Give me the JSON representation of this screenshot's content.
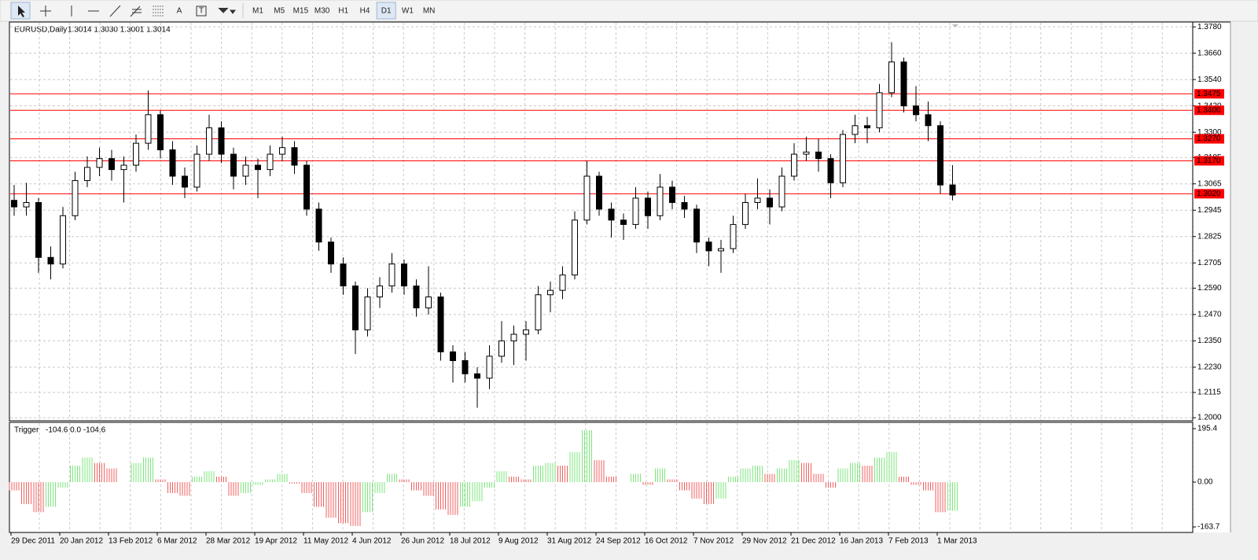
{
  "toolbar": {
    "tools": [
      "A",
      "T"
    ],
    "timeframes": [
      "M1",
      "M5",
      "M15",
      "M30",
      "H1",
      "H4",
      "D1",
      "W1",
      "MN"
    ],
    "active": "D1"
  },
  "chart_data": [
    {
      "type": "candlestick",
      "title": "EURUSD,Daily",
      "quote": "1.3014 1.3030 1.3001 1.3014",
      "bull_color": "#ffffff",
      "bear_color": "#000000",
      "categories": [
        "29 Dec 2011",
        null,
        null,
        null,
        "20 Jan 2012",
        null,
        null,
        null,
        "13 Feb 2012",
        null,
        null,
        null,
        "6 Mar 2012",
        null,
        null,
        null,
        "28 Mar 2012",
        null,
        null,
        null,
        "19 Apr 2012",
        null,
        null,
        null,
        "11 May 2012",
        null,
        null,
        null,
        "4 Jun 2012",
        null,
        null,
        null,
        "26 Jun 2012",
        null,
        null,
        null,
        "18 Jul 2012",
        null,
        null,
        null,
        "9 Aug 2012",
        null,
        null,
        null,
        "31 Aug 2012",
        null,
        null,
        null,
        "24 Sep 2012",
        null,
        null,
        null,
        "16 Oct 2012",
        null,
        null,
        null,
        "7 Nov 2012",
        null,
        null,
        null,
        "29 Nov 2012",
        null,
        null,
        null,
        "21 Dec 2012",
        null,
        null,
        null,
        "16 Jan 2013",
        null,
        null,
        null,
        "7 Feb 2013",
        null,
        null,
        null,
        "1 Mar 2013",
        null
      ],
      "candles": [
        [
          1.299,
          1.306,
          1.292,
          1.296
        ],
        [
          1.296,
          1.307,
          1.292,
          1.298
        ],
        [
          1.298,
          1.3,
          1.266,
          1.273
        ],
        [
          1.273,
          1.278,
          1.263,
          1.27
        ],
        [
          1.27,
          1.296,
          1.268,
          1.292
        ],
        [
          1.292,
          1.312,
          1.29,
          1.308
        ],
        [
          1.308,
          1.319,
          1.305,
          1.314
        ],
        [
          1.314,
          1.323,
          1.31,
          1.318
        ],
        [
          1.318,
          1.322,
          1.308,
          1.313
        ],
        [
          1.313,
          1.319,
          1.298,
          1.315
        ],
        [
          1.315,
          1.329,
          1.312,
          1.325
        ],
        [
          1.325,
          1.349,
          1.322,
          1.338
        ],
        [
          1.338,
          1.34,
          1.318,
          1.322
        ],
        [
          1.322,
          1.326,
          1.306,
          1.31
        ],
        [
          1.31,
          1.314,
          1.3,
          1.305
        ],
        [
          1.305,
          1.324,
          1.303,
          1.32
        ],
        [
          1.32,
          1.338,
          1.317,
          1.332
        ],
        [
          1.332,
          1.335,
          1.316,
          1.32
        ],
        [
          1.32,
          1.323,
          1.304,
          1.31
        ],
        [
          1.31,
          1.319,
          1.306,
          1.315
        ],
        [
          1.315,
          1.318,
          1.3,
          1.313
        ],
        [
          1.313,
          1.324,
          1.31,
          1.32
        ],
        [
          1.32,
          1.328,
          1.317,
          1.323
        ],
        [
          1.323,
          1.326,
          1.311,
          1.315
        ],
        [
          1.315,
          1.317,
          1.292,
          1.295
        ],
        [
          1.295,
          1.298,
          1.276,
          1.28
        ],
        [
          1.28,
          1.282,
          1.266,
          1.27
        ],
        [
          1.27,
          1.273,
          1.256,
          1.26
        ],
        [
          1.26,
          1.262,
          1.229,
          1.24
        ],
        [
          1.24,
          1.259,
          1.237,
          1.255
        ],
        [
          1.255,
          1.264,
          1.25,
          1.26
        ],
        [
          1.26,
          1.275,
          1.257,
          1.27
        ],
        [
          1.27,
          1.272,
          1.256,
          1.26
        ],
        [
          1.26,
          1.263,
          1.246,
          1.25
        ],
        [
          1.25,
          1.269,
          1.247,
          1.255
        ],
        [
          1.255,
          1.257,
          1.226,
          1.23
        ],
        [
          1.23,
          1.233,
          1.216,
          1.226
        ],
        [
          1.226,
          1.23,
          1.216,
          1.22
        ],
        [
          1.22,
          1.223,
          1.2045,
          1.218
        ],
        [
          1.218,
          1.233,
          1.213,
          1.228
        ],
        [
          1.228,
          1.244,
          1.225,
          1.235
        ],
        [
          1.235,
          1.242,
          1.224,
          1.238
        ],
        [
          1.238,
          1.244,
          1.226,
          1.24
        ],
        [
          1.24,
          1.26,
          1.238,
          1.256
        ],
        [
          1.256,
          1.262,
          1.248,
          1.258
        ],
        [
          1.258,
          1.269,
          1.254,
          1.265
        ],
        [
          1.265,
          1.294,
          1.263,
          1.29
        ],
        [
          1.29,
          1.317,
          1.288,
          1.31
        ],
        [
          1.31,
          1.312,
          1.292,
          1.295
        ],
        [
          1.295,
          1.298,
          1.282,
          1.29
        ],
        [
          1.29,
          1.293,
          1.281,
          1.288
        ],
        [
          1.288,
          1.305,
          1.286,
          1.3
        ],
        [
          1.3,
          1.303,
          1.286,
          1.292
        ],
        [
          1.292,
          1.311,
          1.29,
          1.305
        ],
        [
          1.305,
          1.308,
          1.295,
          1.298
        ],
        [
          1.298,
          1.301,
          1.291,
          1.295
        ],
        [
          1.295,
          1.297,
          1.275,
          1.28
        ],
        [
          1.28,
          1.282,
          1.269,
          1.276
        ],
        [
          1.276,
          1.281,
          1.266,
          1.277
        ],
        [
          1.277,
          1.292,
          1.275,
          1.288
        ],
        [
          1.288,
          1.302,
          1.286,
          1.298
        ],
        [
          1.298,
          1.309,
          1.295,
          1.3
        ],
        [
          1.3,
          1.304,
          1.288,
          1.296
        ],
        [
          1.296,
          1.314,
          1.294,
          1.31
        ],
        [
          1.31,
          1.325,
          1.308,
          1.32
        ],
        [
          1.32,
          1.328,
          1.317,
          1.321
        ],
        [
          1.321,
          1.327,
          1.312,
          1.318
        ],
        [
          1.318,
          1.32,
          1.3,
          1.307
        ],
        [
          1.307,
          1.331,
          1.305,
          1.329
        ],
        [
          1.329,
          1.338,
          1.325,
          1.333
        ],
        [
          1.333,
          1.337,
          1.325,
          1.332
        ],
        [
          1.332,
          1.352,
          1.33,
          1.348
        ],
        [
          1.348,
          1.371,
          1.346,
          1.362
        ],
        [
          1.362,
          1.364,
          1.339,
          1.342
        ],
        [
          1.342,
          1.351,
          1.335,
          1.338
        ],
        [
          1.338,
          1.344,
          1.326,
          1.333
        ],
        [
          1.333,
          1.335,
          1.302,
          1.306
        ],
        [
          1.306,
          1.315,
          1.299,
          1.3014
        ]
      ],
      "ylim": [
        1.1986,
        1.3802
      ],
      "yticks": [
        {
          "value": 1.378,
          "label": "1.3780"
        },
        {
          "value": 1.366,
          "label": "1.3660"
        },
        {
          "value": 1.354,
          "label": "1.3540"
        },
        {
          "value": 1.342,
          "label": "1.3420"
        },
        {
          "value": 1.33,
          "label": "1.3300"
        },
        {
          "value": 1.3185,
          "label": "1.3185"
        },
        {
          "value": 1.3065,
          "label": "1.3065"
        },
        {
          "value": 1.2945,
          "label": "1.2945"
        },
        {
          "value": 1.2825,
          "label": "1.2825"
        },
        {
          "value": 1.2705,
          "label": "1.2705"
        },
        {
          "value": 1.259,
          "label": "1.2590"
        },
        {
          "value": 1.247,
          "label": "1.2470"
        },
        {
          "value": 1.235,
          "label": "1.2350"
        },
        {
          "value": 1.223,
          "label": "1.2230"
        },
        {
          "value": 1.2115,
          "label": "1.2115"
        },
        {
          "value": 1.2,
          "label": "1.2000"
        }
      ],
      "level_color": "#ff0000",
      "levels": [
        {
          "value": 1.3475,
          "label": "1.3475"
        },
        {
          "value": 1.34,
          "label": "1.3400"
        },
        {
          "value": 1.327,
          "label": "1.3270"
        },
        {
          "value": 1.317,
          "label": "1.3170"
        },
        {
          "value": 1.302,
          "label": "1.3020"
        }
      ],
      "grid": true
    },
    {
      "type": "histogram",
      "title": "Trigger",
      "quote": "-104.6 0.0 -104.6",
      "rising_color": "#7ee67e",
      "falling_color": "#f06060",
      "values": [
        -30,
        -80,
        -110,
        -90,
        -20,
        60,
        90,
        70,
        50,
        0,
        70,
        90,
        10,
        -40,
        -50,
        20,
        40,
        20,
        -50,
        -40,
        -10,
        10,
        30,
        -5,
        -40,
        -90,
        -130,
        -150,
        -160,
        -110,
        -40,
        30,
        10,
        -30,
        -50,
        -100,
        -120,
        -90,
        -70,
        -20,
        40,
        20,
        10,
        60,
        70,
        60,
        110,
        190,
        80,
        20,
        0,
        30,
        -10,
        50,
        10,
        -30,
        -60,
        -80,
        -60,
        20,
        50,
        60,
        30,
        50,
        80,
        70,
        30,
        -20,
        50,
        70,
        60,
        90,
        110,
        20,
        -10,
        -30,
        -110,
        -104.6
      ],
      "ylim": [
        -181,
        215.5
      ],
      "yticks": [
        195.4,
        {
          "value": 0,
          "label": "0.00"
        },
        -163.7
      ]
    }
  ]
}
